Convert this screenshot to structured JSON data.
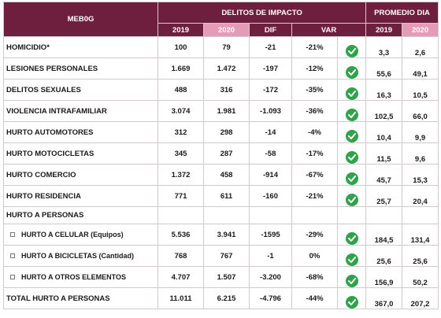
{
  "header": {
    "region": "MEB0G",
    "group_delitos": "DELITOS DE IMPACTO",
    "group_promedio": "PROMEDIO DIA",
    "col_2019": "2019",
    "col_2020": "2020",
    "col_dif": "DIF",
    "col_var": "VAR",
    "avg_2019": "2019",
    "avg_2020": "2020"
  },
  "colors": {
    "maroon": "#6e1f3d",
    "pink": "#e59ab6",
    "check_green": "#2fa24a"
  },
  "rows": [
    {
      "name": "HOMICIDIO*",
      "y2019": "100",
      "y2020": "79",
      "dif": "-21",
      "var": "-21%",
      "a2019": "3,3",
      "a2020": "2,6",
      "icon": "check-circle-icon"
    },
    {
      "name": "LESIONES PERSONALES",
      "y2019": "1.669",
      "y2020": "1.472",
      "dif": "-197",
      "var": "-12%",
      "a2019": "55,6",
      "a2020": "49,1",
      "icon": "check-circle-icon"
    },
    {
      "name": "DELITOS SEXUALES",
      "y2019": "488",
      "y2020": "316",
      "dif": "-172",
      "var": "-35%",
      "a2019": "16,3",
      "a2020": "10,5",
      "icon": "check-circle-icon"
    },
    {
      "name": "VIOLENCIA INTRAFAMILIAR",
      "y2019": "3.074",
      "y2020": "1.981",
      "dif": "-1.093",
      "var": "-36%",
      "a2019": "102,5",
      "a2020": "66,0",
      "icon": "check-circle-icon"
    },
    {
      "name": "HURTO AUTOMOTORES",
      "y2019": "312",
      "y2020": "298",
      "dif": "-14",
      "var": "-4%",
      "a2019": "10,4",
      "a2020": "9,9",
      "icon": "check-circle-icon"
    },
    {
      "name": "HURTO MOTOCICLETAS",
      "y2019": "345",
      "y2020": "287",
      "dif": "-58",
      "var": "-17%",
      "a2019": "11,5",
      "a2020": "9,6",
      "icon": "check-circle-icon"
    },
    {
      "name": "HURTO COMERCIO",
      "y2019": "1.372",
      "y2020": "458",
      "dif": "-914",
      "var": "-67%",
      "a2019": "45,7",
      "a2020": "15,3",
      "icon": "check-circle-icon"
    },
    {
      "name": "HURTO RESIDENCIA",
      "y2019": "771",
      "y2020": "611",
      "dif": "-160",
      "var": "-21%",
      "a2019": "25,7",
      "a2020": "20,4",
      "icon": "check-circle-icon"
    }
  ],
  "section_label": "HURTO A PERSONAS",
  "subrows": [
    {
      "name": "HURTO A CELULAR (Equipos)",
      "y2019": "5.536",
      "y2020": "3.941",
      "dif": "-1595",
      "var": "-29%",
      "a2019": "184,5",
      "a2020": "131,4",
      "icon": "check-circle-icon"
    },
    {
      "name": "HURTO A BICICLETAS (Cantidad)",
      "y2019": "768",
      "y2020": "767",
      "dif": "-1",
      "var": "0%",
      "a2019": "25,6",
      "a2020": "25,6",
      "icon": "check-circle-icon"
    },
    {
      "name": "HURTO A OTROS ELEMENTOS",
      "y2019": "4.707",
      "y2020": "1.507",
      "dif": "-3.200",
      "var": "-68%",
      "a2019": "156,9",
      "a2020": "50,2",
      "icon": "check-circle-icon"
    }
  ],
  "total": {
    "name": "TOTAL HURTO A PERSONAS",
    "y2019": "11.011",
    "y2020": "6.215",
    "dif": "-4.796",
    "var": "-44%",
    "a2019": "367,0",
    "a2020": "207,2",
    "icon": "check-circle-icon"
  }
}
